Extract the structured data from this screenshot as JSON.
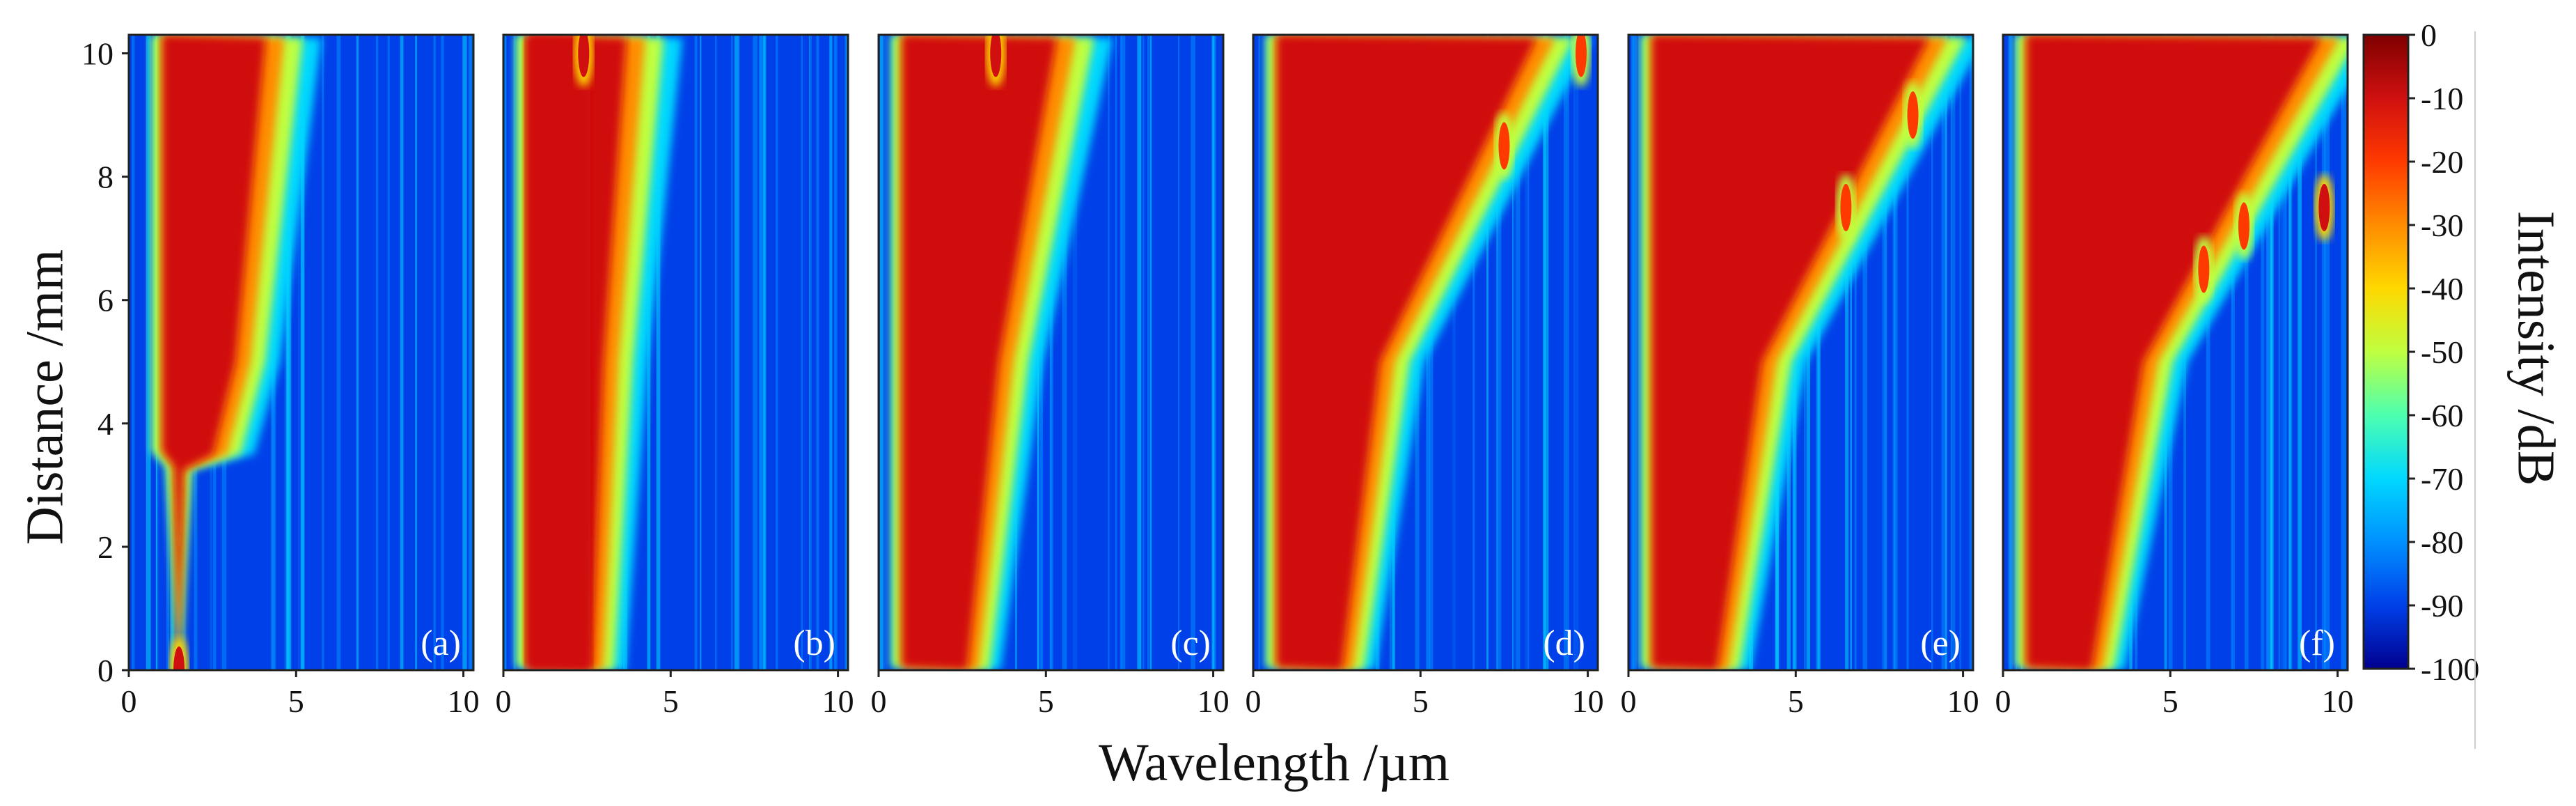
{
  "chart_data": {
    "type": "heatmap",
    "figure_title": "",
    "xlabel": "Wavelength /µm",
    "ylabel": "Distance /mm",
    "xlim": [
      0,
      10.3
    ],
    "ylim": [
      0,
      10.3
    ],
    "x_ticks": [
      0,
      5,
      10
    ],
    "y_ticks": [
      0,
      2,
      4,
      6,
      8,
      10
    ],
    "colorbar": {
      "label": "Intensity /dB",
      "range": [
        -100,
        0
      ],
      "ticks": [
        0,
        -10,
        -20,
        -30,
        -40,
        -50,
        -60,
        -70,
        -80,
        -90,
        -100
      ],
      "colors": [
        "#7f0000",
        "#d01010",
        "#ff3a00",
        "#ff8c00",
        "#ffd800",
        "#bfff40",
        "#4dffb0",
        "#00d8ff",
        "#0090ff",
        "#0040e8",
        "#00008f"
      ]
    },
    "panels": [
      {
        "label": "(a)",
        "edge_um": [
          0.8,
          3.0,
          3.8
        ],
        "features": [
          [
            1.5,
            0.0,
            -10,
            "narrow input pulse, broadens after 3.5 mm"
          ]
        ]
      },
      {
        "label": "(b)",
        "edge_um": [
          2.5,
          2.8,
          3.4
        ],
        "features": [
          [
            2.4,
            10.0,
            -5,
            "dense core 0.8-2.6 µm"
          ]
        ]
      },
      {
        "label": "(c)",
        "edge_um": [
          2.5,
          3.4,
          5.0
        ],
        "features": [
          [
            3.5,
            10.0,
            -5,
            "soliton trace up to 4 µm"
          ]
        ]
      },
      {
        "label": "(d)",
        "edge_um": [
          2.5,
          3.6,
          8.0
        ],
        "features": [
          [
            7.5,
            8.5,
            -15,
            "dispersive wave"
          ],
          [
            9.8,
            10.0,
            -20,
            "edge peak"
          ]
        ]
      },
      {
        "label": "(e)",
        "edge_um": [
          2.5,
          3.8,
          8.5
        ],
        "features": [
          [
            6.5,
            7.5,
            -15,
            "dispersive wave"
          ],
          [
            8.5,
            9.0,
            -20,
            "dispersive wave"
          ]
        ]
      },
      {
        "label": "(f)",
        "edge_um": [
          2.5,
          4.0,
          9.0
        ],
        "features": [
          [
            6.0,
            6.5,
            -15,
            "dispersive wave"
          ],
          [
            7.2,
            7.2,
            -20,
            "dispersive wave"
          ],
          [
            9.6,
            7.5,
            -10,
            "dispersive wave"
          ]
        ]
      }
    ]
  }
}
